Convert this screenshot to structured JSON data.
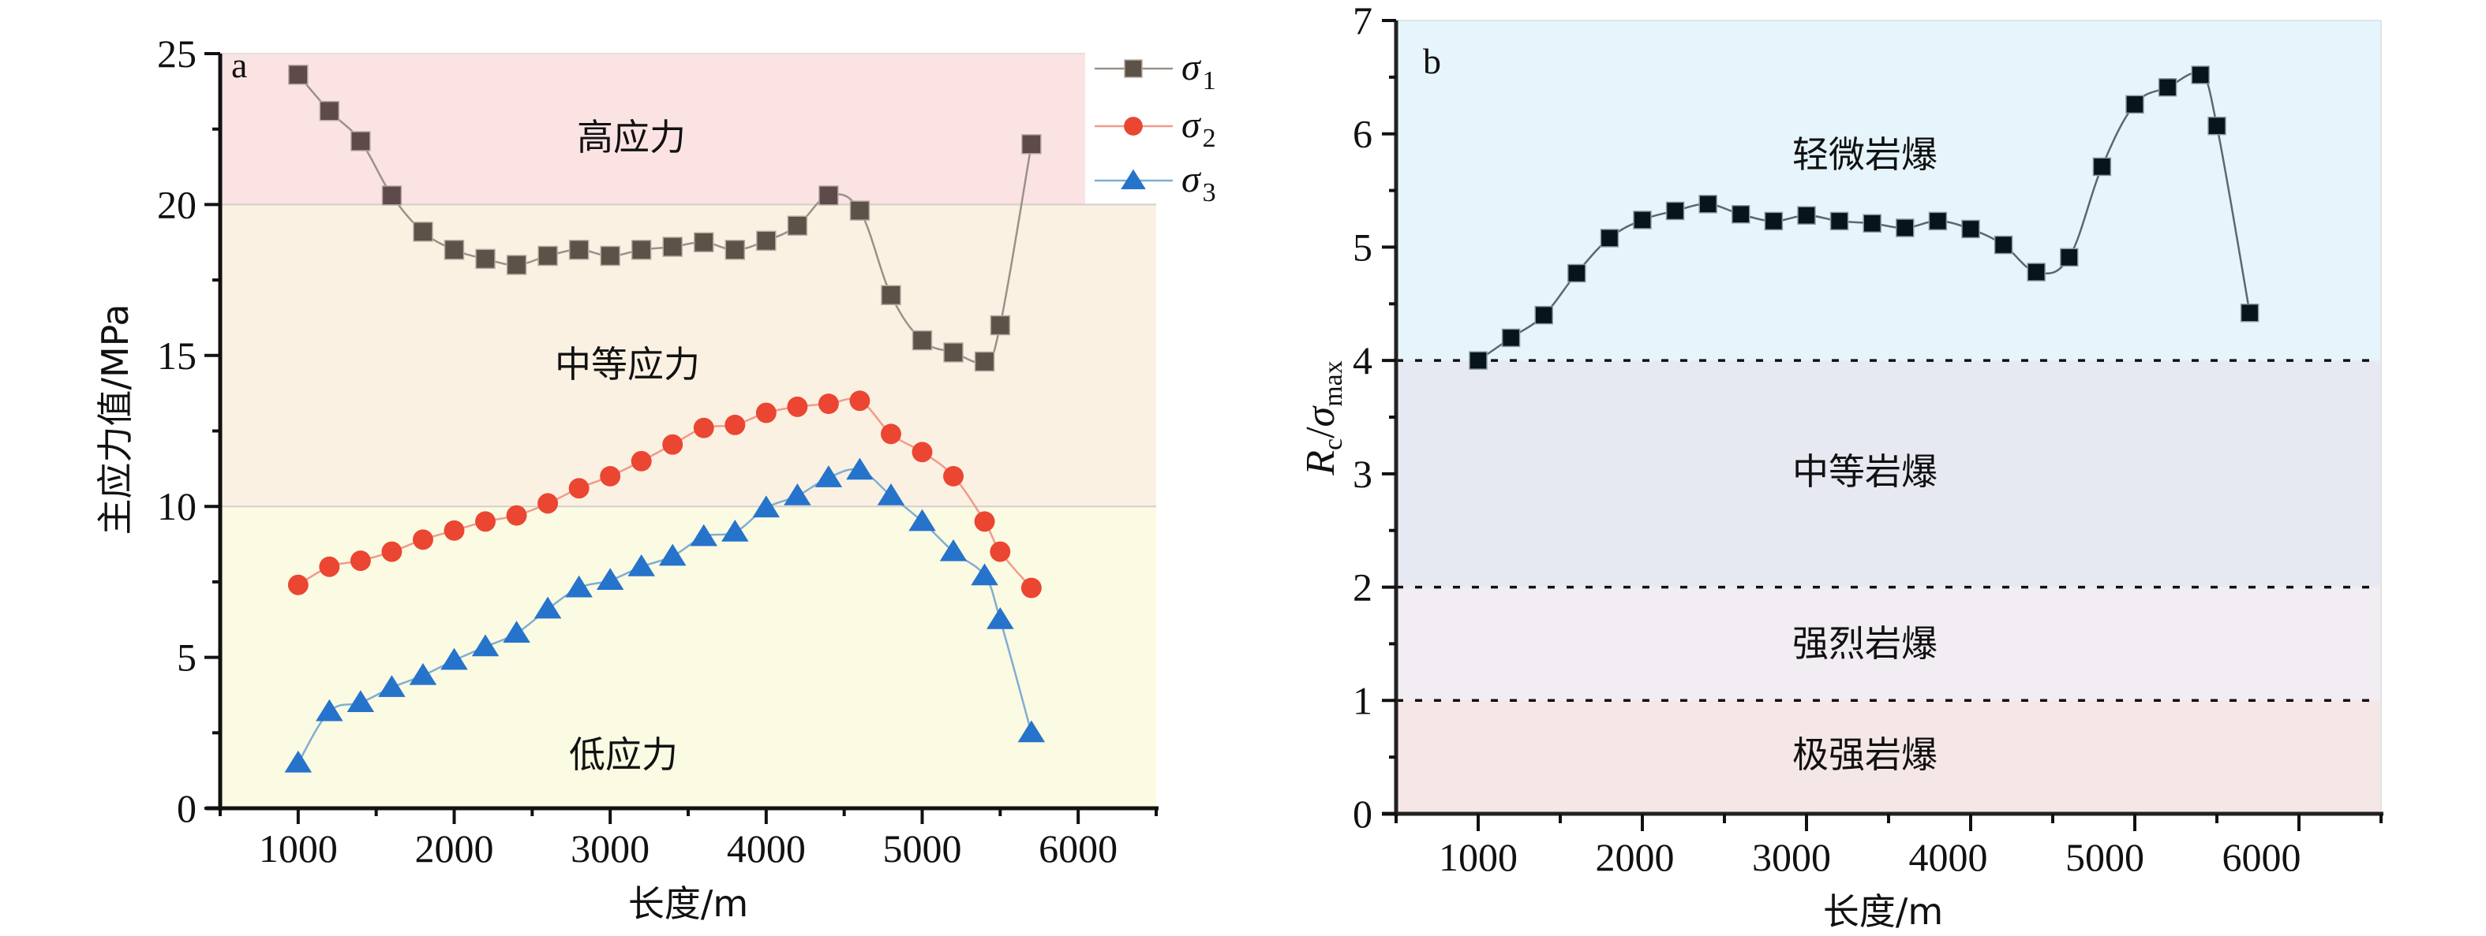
{
  "chart_data": [
    {
      "panel": "a",
      "type": "line",
      "xlabel": "长度/m",
      "ylabel": "主应力值/MPa",
      "xlim": [
        500,
        6500
      ],
      "ylim": [
        0,
        25
      ],
      "xticks": [
        1000,
        2000,
        3000,
        4000,
        5000,
        6000
      ],
      "yticks": [
        0,
        5,
        10,
        15,
        20,
        25
      ],
      "grid": false,
      "legend_position": "top-right",
      "zones": [
        {
          "label": "高应力",
          "from": 20,
          "to": 25,
          "color": "#fbe3e4"
        },
        {
          "label": "中等应力",
          "from": 10,
          "to": 20,
          "color": "#fbf1e2"
        },
        {
          "label": "低应力",
          "from": 0,
          "to": 10,
          "color": "#fbfae2"
        }
      ],
      "x": [
        1000,
        1200,
        1400,
        1600,
        1800,
        2000,
        2200,
        2400,
        2600,
        2800,
        3000,
        3200,
        3400,
        3600,
        3800,
        4000,
        4200,
        4400,
        4600,
        4800,
        5000,
        5200,
        5400,
        5500,
        5700
      ],
      "series": [
        {
          "name": "σ1",
          "symbol": "σ",
          "subscript": "1",
          "marker": "square",
          "color": "#5c5247",
          "line_color": "#9a918a",
          "values": [
            24.3,
            23.1,
            22.1,
            20.3,
            19.1,
            18.5,
            18.2,
            18.0,
            18.3,
            18.5,
            18.3,
            18.5,
            18.6,
            18.75,
            18.5,
            18.8,
            19.3,
            20.3,
            19.8,
            17.0,
            15.5,
            15.1,
            14.8,
            16.0,
            22.0
          ]
        },
        {
          "name": "σ2",
          "symbol": "σ",
          "subscript": "2",
          "marker": "circle",
          "color": "#ea4632",
          "line_color": "#f09a8c",
          "values": [
            7.4,
            8.0,
            8.2,
            8.5,
            8.9,
            9.2,
            9.5,
            9.7,
            10.1,
            10.6,
            11.0,
            11.5,
            12.05,
            12.6,
            12.7,
            13.1,
            13.3,
            13.4,
            13.5,
            12.4,
            11.8,
            11.0,
            9.5,
            8.5,
            7.3
          ]
        },
        {
          "name": "σ3",
          "symbol": "σ",
          "subscript": "3",
          "marker": "triangle",
          "color": "#2673cb",
          "line_color": "#7faed3",
          "values": [
            1.5,
            3.2,
            3.5,
            4.0,
            4.4,
            4.9,
            5.35,
            5.8,
            6.6,
            7.3,
            7.55,
            8.0,
            8.35,
            9.0,
            9.15,
            9.95,
            10.35,
            10.95,
            11.2,
            10.35,
            9.5,
            8.5,
            7.7,
            6.25,
            2.5
          ]
        }
      ]
    },
    {
      "panel": "b",
      "type": "line",
      "xlabel": "长度/m",
      "ylabel": {
        "main": "R",
        "main_sub": "c",
        "slash": "/",
        "sigma": "σ",
        "sigma_sub": "max"
      },
      "xlim": [
        500,
        6500
      ],
      "ylim": [
        0,
        7
      ],
      "xticks": [
        1000,
        2000,
        3000,
        4000,
        5000,
        6000
      ],
      "yticks": [
        0,
        1,
        2,
        3,
        4,
        5,
        6,
        7
      ],
      "grid": false,
      "thresholds": [
        1,
        2,
        4
      ],
      "zones": [
        {
          "label": "轻微岩爆",
          "from": 4,
          "to": 7,
          "color": "#e6f5fc"
        },
        {
          "label": "中等岩爆",
          "from": 2,
          "to": 4,
          "color": "#e7e9f2"
        },
        {
          "label": "强烈岩爆",
          "from": 1,
          "to": 2,
          "color": "#f2ecf3"
        },
        {
          "label": "极强岩爆",
          "from": 0,
          "to": 1,
          "color": "#f6e7e7"
        }
      ],
      "x": [
        1000,
        1200,
        1400,
        1600,
        1800,
        2000,
        2200,
        2400,
        2600,
        2800,
        3000,
        3200,
        3400,
        3600,
        3800,
        4000,
        4200,
        4400,
        4600,
        4800,
        5000,
        5200,
        5400,
        5500,
        5700
      ],
      "series": [
        {
          "name": "Rc/σmax",
          "marker": "square",
          "color": "#06141b",
          "line_color": "#5a6870",
          "values": [
            4.0,
            4.2,
            4.4,
            4.77,
            5.08,
            5.24,
            5.32,
            5.38,
            5.29,
            5.23,
            5.28,
            5.23,
            5.21,
            5.17,
            5.23,
            5.16,
            5.02,
            4.78,
            4.91,
            5.71,
            6.26,
            6.41,
            6.52,
            6.07,
            4.42
          ]
        }
      ]
    }
  ]
}
